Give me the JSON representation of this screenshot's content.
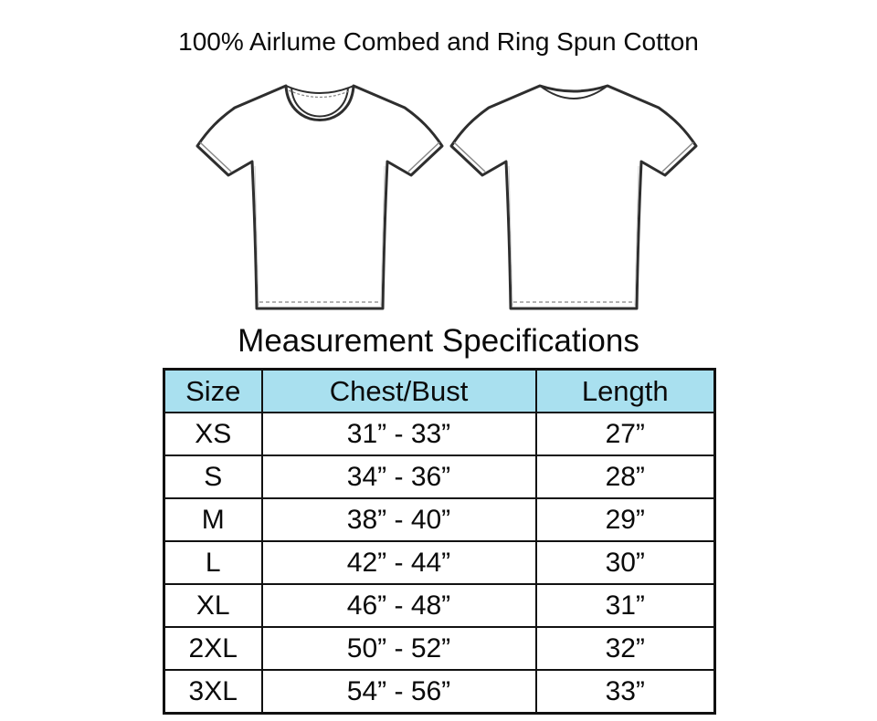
{
  "title": "100% Airlume Combed and Ring Spun Cotton",
  "heading": "Measurement Specifications",
  "graphics": {
    "front_view": "t-shirt front outline drawing",
    "back_view": "t-shirt back outline drawing"
  },
  "colors": {
    "header_bg": "#A9E0EF",
    "table_border": "#111111",
    "outline": "#2e2e2e",
    "stitch": "#999999"
  },
  "chart_data": {
    "type": "table",
    "title": "Measurement Specifications",
    "columns": [
      "Size",
      "Chest/Bust",
      "Length"
    ],
    "rows": [
      [
        "XS",
        "31” - 33”",
        "27”"
      ],
      [
        "S",
        "34” - 36”",
        "28”"
      ],
      [
        "M",
        "38” - 40”",
        "29”"
      ],
      [
        "L",
        "42” - 44”",
        "30”"
      ],
      [
        "XL",
        "46” - 48”",
        "31”"
      ],
      [
        "2XL",
        "50” - 52”",
        "32”"
      ],
      [
        "3XL",
        "54” - 56”",
        "33”"
      ]
    ]
  }
}
